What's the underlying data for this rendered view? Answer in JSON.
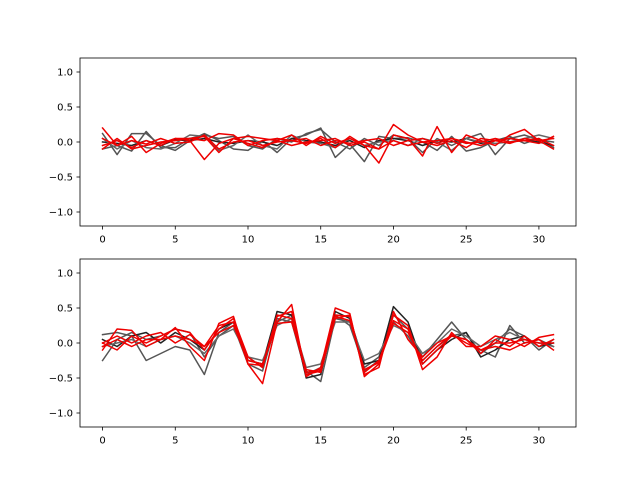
{
  "chart_data": [
    {
      "type": "line",
      "title": "",
      "xlabel": "",
      "ylabel": "",
      "xlim": [
        -1.55,
        32.55
      ],
      "ylim": [
        -1.2,
        1.2
      ],
      "xticks": [
        0,
        5,
        10,
        15,
        20,
        25,
        30
      ],
      "yticks": [
        -1.0,
        -0.5,
        0.0,
        0.5,
        1.0
      ],
      "ytick_labels": [
        "−1.0",
        "−0.5",
        "0.0",
        "0.5",
        "1.0"
      ],
      "grid": false,
      "legend": "none",
      "x": [
        0,
        1,
        2,
        3,
        4,
        5,
        6,
        7,
        8,
        9,
        10,
        11,
        12,
        13,
        14,
        15,
        16,
        17,
        18,
        19,
        20,
        21,
        22,
        23,
        24,
        25,
        26,
        27,
        28,
        29,
        30,
        31
      ],
      "series": [
        {
          "color": "#555555",
          "values": [
            0.12,
            -0.18,
            0.12,
            0.12,
            -0.05,
            -0.12,
            0.02,
            0.12,
            0.02,
            -0.1,
            -0.12,
            0.02,
            -0.15,
            0.05,
            0.1,
            0.2,
            -0.22,
            -0.03,
            -0.28,
            0.08,
            0.05,
            0.06,
            0.0,
            -0.12,
            0.08,
            -0.13,
            -0.08,
            0.02,
            0.08,
            -0.02,
            0.05,
            -0.08
          ]
        },
        {
          "color": "#555555",
          "values": [
            -0.1,
            -0.05,
            -0.13,
            0.15,
            -0.08,
            -0.08,
            0.05,
            0.1,
            0.05,
            0.08,
            -0.05,
            -0.1,
            0.05,
            0.0,
            0.12,
            0.18,
            0.0,
            -0.1,
            0.05,
            -0.05,
            0.1,
            0.05,
            -0.15,
            0.05,
            -0.05,
            0.05,
            0.12,
            -0.18,
            0.05,
            0.1,
            0.03,
            0.0
          ]
        },
        {
          "color": "#222222",
          "values": [
            0.0,
            -0.02,
            -0.05,
            0.02,
            -0.05,
            0.03,
            0.02,
            0.05,
            0.0,
            -0.02,
            0.02,
            0.0,
            -0.05,
            0.05,
            0.02,
            0.0,
            -0.05,
            0.02,
            -0.08,
            0.02,
            0.05,
            0.02,
            -0.05,
            0.02,
            0.0,
            0.05,
            -0.02,
            0.02,
            0.05,
            0.02,
            0.0,
            -0.05
          ]
        },
        {
          "color": "#666666",
          "values": [
            0.05,
            -0.1,
            0.02,
            -0.08,
            -0.1,
            -0.02,
            0.1,
            0.08,
            -0.12,
            -0.05,
            0.1,
            -0.05,
            -0.1,
            0.1,
            0.0,
            -0.02,
            -0.08,
            0.05,
            -0.05,
            0.0,
            0.02,
            -0.05,
            0.05,
            0.0,
            -0.12,
            0.05,
            0.0,
            -0.02,
            0.0,
            0.05,
            0.1,
            0.05
          ]
        },
        {
          "color": "#ee0000",
          "values": [
            0.2,
            -0.05,
            0.08,
            -0.15,
            -0.02,
            0.05,
            0.02,
            -0.25,
            -0.02,
            0.05,
            0.08,
            0.05,
            0.02,
            0.1,
            -0.05,
            0.08,
            -0.02,
            0.05,
            -0.05,
            -0.3,
            0.1,
            0.05,
            -0.2,
            0.22,
            -0.15,
            0.1,
            0.02,
            -0.05,
            0.1,
            0.18,
            0.02,
            0.05
          ]
        },
        {
          "color": "#ee0000",
          "values": [
            -0.1,
            0.05,
            -0.1,
            -0.05,
            0.0,
            0.02,
            0.05,
            0.02,
            0.12,
            0.1,
            -0.05,
            0.02,
            0.05,
            0.02,
            -0.02,
            0.05,
            -0.08,
            0.08,
            -0.05,
            -0.1,
            0.25,
            0.1,
            0.0,
            -0.05,
            0.02,
            -0.08,
            0.05,
            0.02,
            -0.02,
            0.05,
            0.02,
            -0.1
          ]
        },
        {
          "color": "#ee0000",
          "values": [
            0.05,
            -0.05,
            0.02,
            -0.03,
            0.05,
            -0.02,
            0.0,
            0.1,
            -0.1,
            0.0,
            0.02,
            -0.05,
            0.0,
            0.02,
            0.05,
            -0.05,
            0.02,
            -0.02,
            0.02,
            0.05,
            -0.05,
            0.02,
            0.05,
            -0.02,
            0.05,
            -0.02,
            0.0,
            0.05,
            0.0,
            0.02,
            0.05,
            -0.05
          ]
        },
        {
          "color": "#ee0000",
          "values": [
            -0.05,
            0.02,
            -0.08,
            0.02,
            -0.05,
            0.05,
            0.05,
            0.08,
            -0.15,
            0.05,
            -0.02,
            -0.08,
            0.02,
            -0.05,
            0.0,
            0.02,
            0.05,
            -0.05,
            0.0,
            -0.1,
            0.02,
            -0.05,
            0.0,
            0.02,
            0.05,
            0.0,
            -0.05,
            0.02,
            0.05,
            0.02,
            -0.02,
            0.08
          ]
        }
      ]
    },
    {
      "type": "line",
      "title": "",
      "xlabel": "",
      "ylabel": "",
      "xlim": [
        -1.55,
        32.55
      ],
      "ylim": [
        -1.2,
        1.2
      ],
      "xticks": [
        0,
        5,
        10,
        15,
        20,
        25,
        30
      ],
      "yticks": [
        -1.0,
        -0.5,
        0.0,
        0.5,
        1.0
      ],
      "ytick_labels": [
        "−1.0",
        "−0.5",
        "0.0",
        "0.5",
        "1.0"
      ],
      "grid": false,
      "legend": "none",
      "x": [
        0,
        1,
        2,
        3,
        4,
        5,
        6,
        7,
        8,
        9,
        10,
        11,
        12,
        13,
        14,
        15,
        16,
        17,
        18,
        19,
        20,
        21,
        22,
        23,
        24,
        25,
        26,
        27,
        28,
        29,
        30,
        31
      ],
      "series": [
        {
          "color": "#555555",
          "values": [
            0.12,
            0.15,
            0.1,
            -0.25,
            -0.15,
            -0.05,
            -0.1,
            -0.45,
            0.15,
            0.3,
            -0.2,
            -0.35,
            0.3,
            0.4,
            -0.4,
            -0.55,
            0.35,
            0.3,
            -0.4,
            -0.25,
            0.3,
            0.1,
            -0.25,
            -0.05,
            0.1,
            0.15,
            -0.15,
            0.0,
            0.2,
            0.1,
            -0.1,
            0.05
          ]
        },
        {
          "color": "#555555",
          "values": [
            -0.25,
            0.05,
            0.15,
            0.05,
            0.1,
            0.2,
            0.15,
            -0.2,
            0.1,
            0.25,
            -0.3,
            -0.4,
            0.35,
            0.3,
            -0.45,
            -0.35,
            0.4,
            0.25,
            -0.35,
            -0.2,
            0.4,
            0.2,
            -0.2,
            0.05,
            0.3,
            0.05,
            -0.1,
            -0.2,
            0.25,
            0.0,
            0.05,
            -0.05
          ]
        },
        {
          "color": "#222222",
          "values": [
            0.05,
            -0.05,
            0.1,
            0.15,
            0.0,
            0.15,
            0.05,
            -0.1,
            0.2,
            0.3,
            -0.25,
            -0.3,
            0.45,
            0.4,
            -0.5,
            -0.45,
            0.45,
            0.35,
            -0.3,
            -0.25,
            0.52,
            0.3,
            -0.3,
            -0.1,
            0.05,
            0.15,
            -0.2,
            -0.1,
            0.05,
            0.1,
            -0.05,
            0.0
          ]
        },
        {
          "color": "#666666",
          "values": [
            -0.05,
            0.0,
            0.05,
            -0.05,
            0.05,
            0.1,
            0.0,
            -0.15,
            0.1,
            0.2,
            -0.2,
            -0.25,
            0.25,
            0.35,
            -0.35,
            -0.3,
            0.3,
            0.3,
            -0.25,
            -0.15,
            0.25,
            0.15,
            -0.15,
            0.0,
            0.2,
            0.1,
            -0.05,
            0.05,
            0.15,
            0.05,
            0.0,
            -0.05
          ]
        },
        {
          "color": "#ee0000",
          "values": [
            -0.1,
            0.2,
            0.18,
            -0.05,
            0.05,
            0.22,
            -0.05,
            -0.25,
            0.28,
            0.38,
            -0.3,
            -0.58,
            0.3,
            0.55,
            -0.48,
            -0.35,
            0.5,
            0.42,
            -0.48,
            -0.3,
            0.4,
            0.25,
            -0.38,
            -0.2,
            0.15,
            -0.05,
            -0.05,
            0.1,
            0.05,
            -0.05,
            0.08,
            0.12
          ]
        },
        {
          "color": "#ee0000",
          "values": [
            0.0,
            -0.1,
            0.1,
            0.0,
            0.1,
            0.2,
            0.15,
            -0.1,
            0.2,
            0.35,
            -0.2,
            -0.35,
            0.4,
            0.35,
            -0.45,
            -0.4,
            0.4,
            0.38,
            -0.42,
            -0.25,
            0.32,
            0.2,
            -0.3,
            -0.1,
            0.1,
            0.05,
            -0.15,
            0.05,
            -0.05,
            0.1,
            -0.05,
            0.05
          ]
        },
        {
          "color": "#ee0000",
          "values": [
            0.0,
            0.1,
            0.0,
            0.1,
            0.15,
            0.0,
            0.12,
            -0.05,
            0.25,
            0.3,
            -0.3,
            -0.32,
            0.38,
            0.45,
            -0.42,
            -0.38,
            0.35,
            0.4,
            -0.45,
            -0.35,
            0.45,
            0.05,
            -0.2,
            0.0,
            0.1,
            0.05,
            -0.1,
            -0.05,
            -0.1,
            0.0,
            0.05,
            -0.1
          ]
        },
        {
          "color": "#ee0000",
          "values": [
            -0.05,
            0.05,
            -0.05,
            0.05,
            0.05,
            0.1,
            0.05,
            -0.05,
            0.15,
            0.25,
            -0.25,
            -0.3,
            0.28,
            0.3,
            -0.38,
            -0.42,
            0.38,
            0.32,
            -0.38,
            -0.28,
            0.28,
            0.15,
            -0.25,
            -0.05,
            0.12,
            0.0,
            -0.1,
            0.0,
            0.0,
            0.05,
            0.0,
            0.0
          ]
        }
      ]
    }
  ]
}
